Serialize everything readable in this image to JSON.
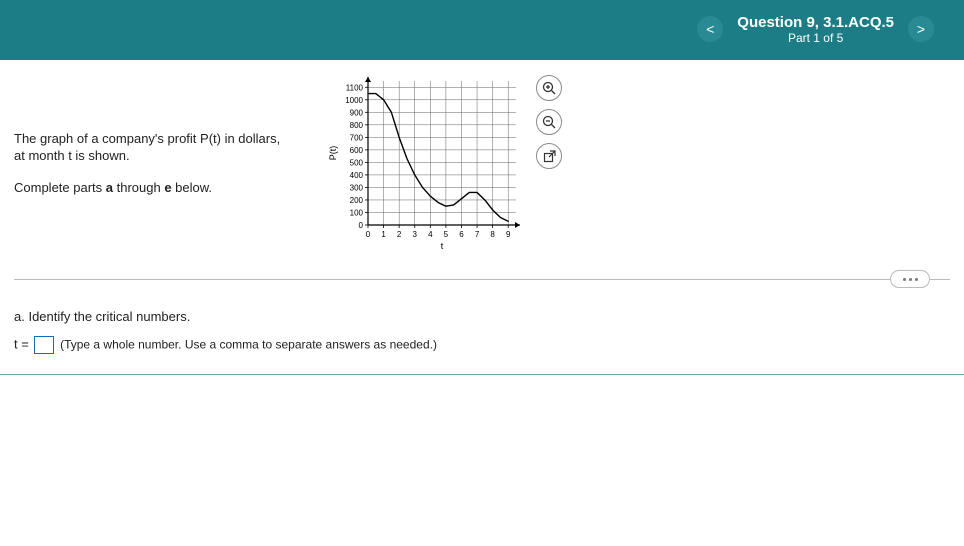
{
  "header": {
    "title": "Question 9, 3.1.ACQ.5",
    "subtitle": "Part 1 of 5",
    "prev_glyph": "<",
    "next_glyph": ">"
  },
  "prompt": {
    "line1_a": "The graph of a company's profit P(t) in dollars,",
    "line1_b": "at month t is shown.",
    "line2_a": "Complete parts ",
    "line2_bold1": "a",
    "line2_mid": " through ",
    "line2_bold2": "e",
    "line2_end": " below."
  },
  "chart": {
    "type": "line",
    "x_label": "t",
    "y_label": "P(t)",
    "xlim": [
      0,
      9.5
    ],
    "ylim": [
      0,
      1150
    ],
    "x_ticks": [
      0,
      1,
      2,
      3,
      4,
      5,
      6,
      7,
      8,
      9
    ],
    "y_ticks": [
      0,
      100,
      200,
      300,
      400,
      500,
      600,
      700,
      800,
      900,
      1000,
      1100
    ],
    "grid_color": "#666666",
    "axis_color": "#000000",
    "line_color": "#000000",
    "background_color": "#ffffff",
    "tick_fontsize": 8,
    "label_fontsize": 9,
    "line_width": 1.4,
    "points": [
      [
        0,
        1050
      ],
      [
        0.5,
        1050
      ],
      [
        1,
        1000
      ],
      [
        1.5,
        900
      ],
      [
        2,
        700
      ],
      [
        2.5,
        530
      ],
      [
        3,
        400
      ],
      [
        3.5,
        300
      ],
      [
        4,
        230
      ],
      [
        4.5,
        180
      ],
      [
        5,
        150
      ],
      [
        5.5,
        160
      ],
      [
        6,
        210
      ],
      [
        6.5,
        260
      ],
      [
        7,
        260
      ],
      [
        7.5,
        200
      ],
      [
        8,
        120
      ],
      [
        8.5,
        60
      ],
      [
        9,
        30
      ]
    ]
  },
  "tools": {
    "zoom_in": "⊕",
    "zoom_out": "⚲",
    "popout": "⇱"
  },
  "question": {
    "part_label": "a. Identify the critical numbers.",
    "answer_prefix": "t =",
    "hint": "(Type a whole number. Use a comma to separate answers as needed.)"
  }
}
